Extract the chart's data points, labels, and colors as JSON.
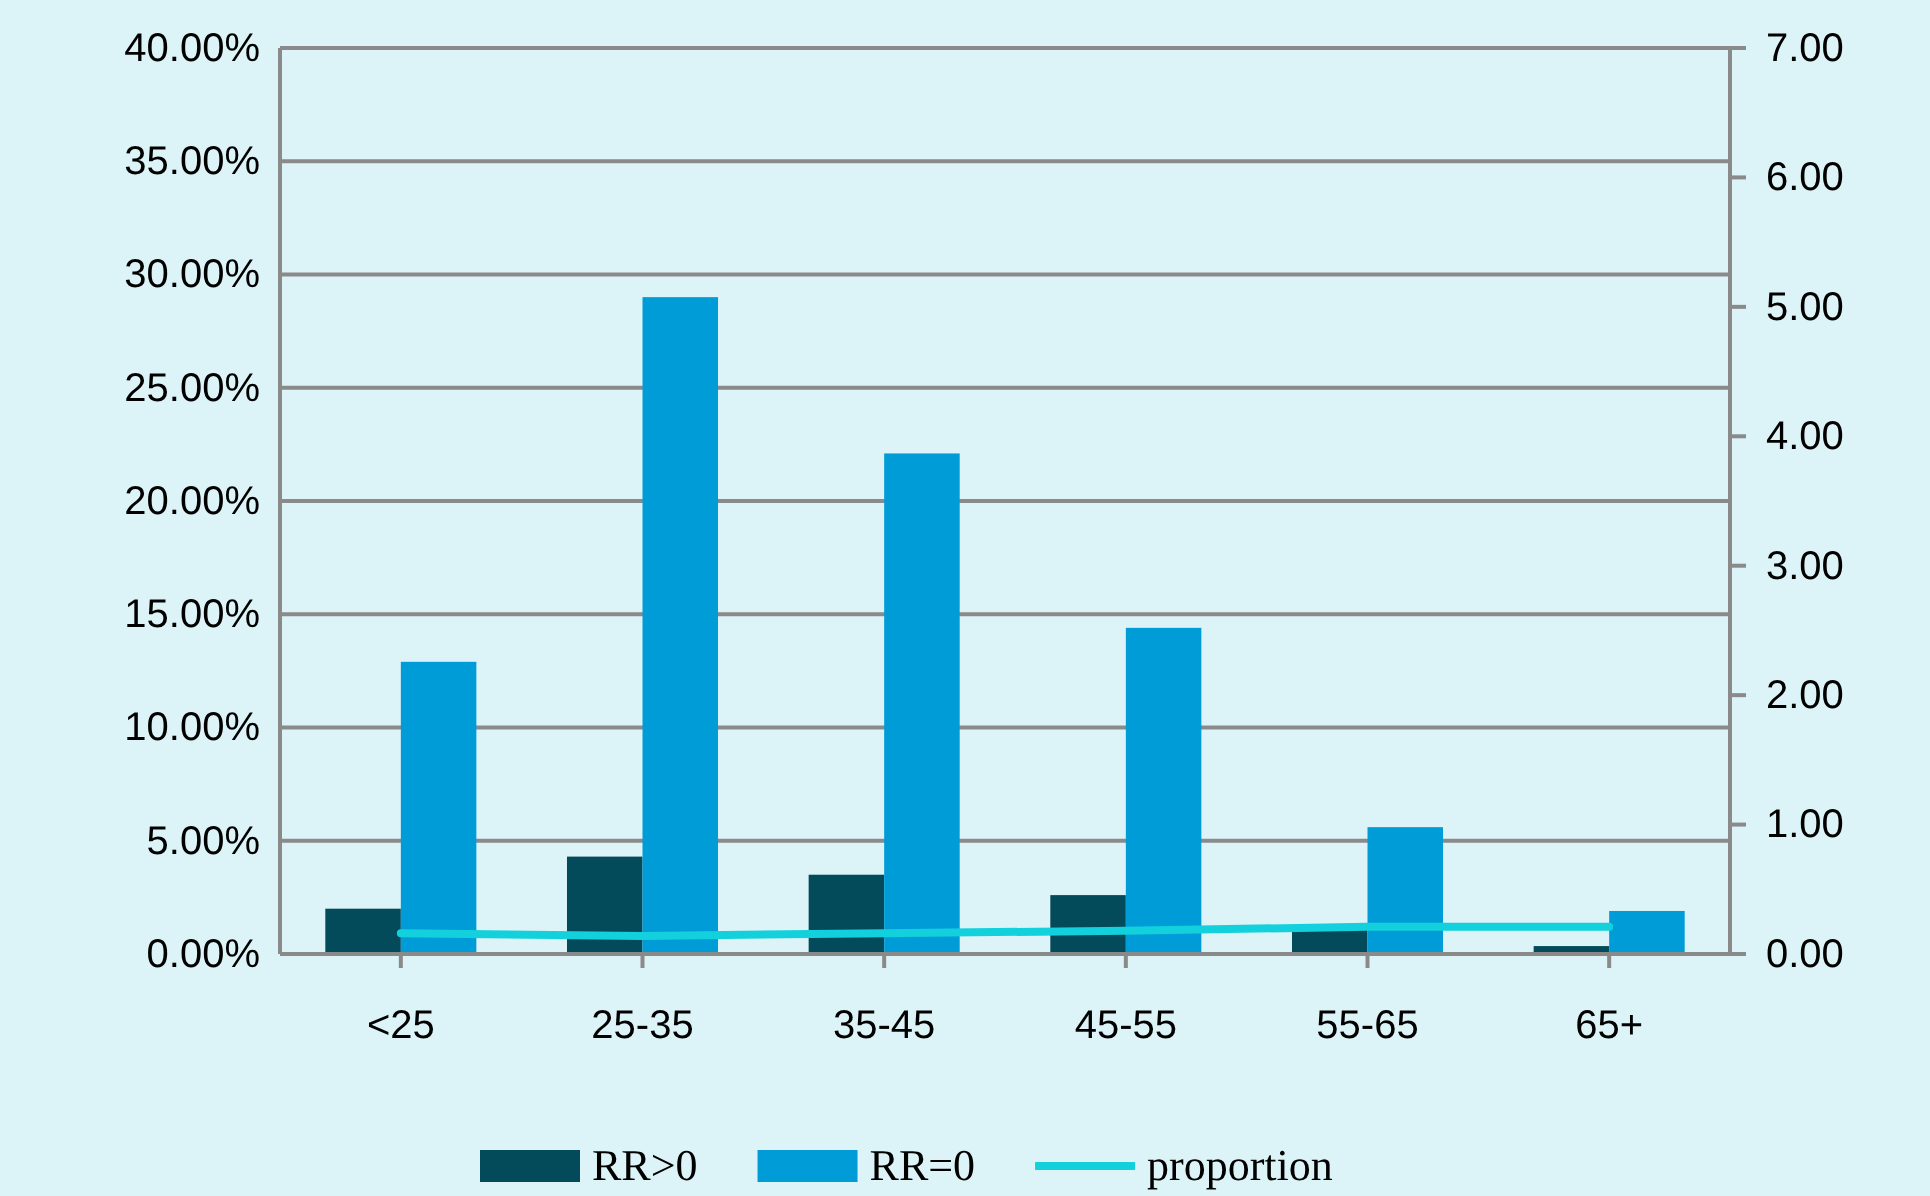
{
  "chart_data": {
    "type": "bar",
    "categories": [
      "<25",
      "25-35",
      "35-45",
      "45-55",
      "55-65",
      "65+"
    ],
    "series": [
      {
        "name": "RR>0",
        "color": "#034a5a",
        "values": [
          2.0,
          4.3,
          3.5,
          2.6,
          1.1,
          0.35
        ]
      },
      {
        "name": "RR=0",
        "color": "#009cd8",
        "values": [
          12.9,
          29.0,
          22.1,
          14.4,
          5.6,
          1.9
        ]
      },
      {
        "name": "proportion",
        "type": "line",
        "axis": "y2",
        "color": "#12d0dc",
        "values": [
          0.16,
          0.14,
          0.16,
          0.18,
          0.21,
          0.21
        ]
      }
    ],
    "ylim": [
      0,
      40
    ],
    "yticks": [
      {
        "value": 0,
        "label": "0.00%"
      },
      {
        "value": 5,
        "label": "5.00%"
      },
      {
        "value": 10,
        "label": "10.00%"
      },
      {
        "value": 15,
        "label": "15.00%"
      },
      {
        "value": 20,
        "label": "20.00%"
      },
      {
        "value": 25,
        "label": "25.00%"
      },
      {
        "value": 30,
        "label": "30.00%"
      },
      {
        "value": 35,
        "label": "35.00%"
      },
      {
        "value": 40,
        "label": "40.00%"
      }
    ],
    "y2lim": [
      0,
      7
    ],
    "y2ticks": [
      {
        "value": 0,
        "label": "0.00"
      },
      {
        "value": 1,
        "label": "1.00"
      },
      {
        "value": 2,
        "label": "2.00"
      },
      {
        "value": 3,
        "label": "3.00"
      },
      {
        "value": 4,
        "label": "4.00"
      },
      {
        "value": 5,
        "label": "5.00"
      },
      {
        "value": 6,
        "label": "6.00"
      },
      {
        "value": 7,
        "label": "7.00"
      }
    ],
    "grid": "y",
    "legend": "bottom"
  }
}
